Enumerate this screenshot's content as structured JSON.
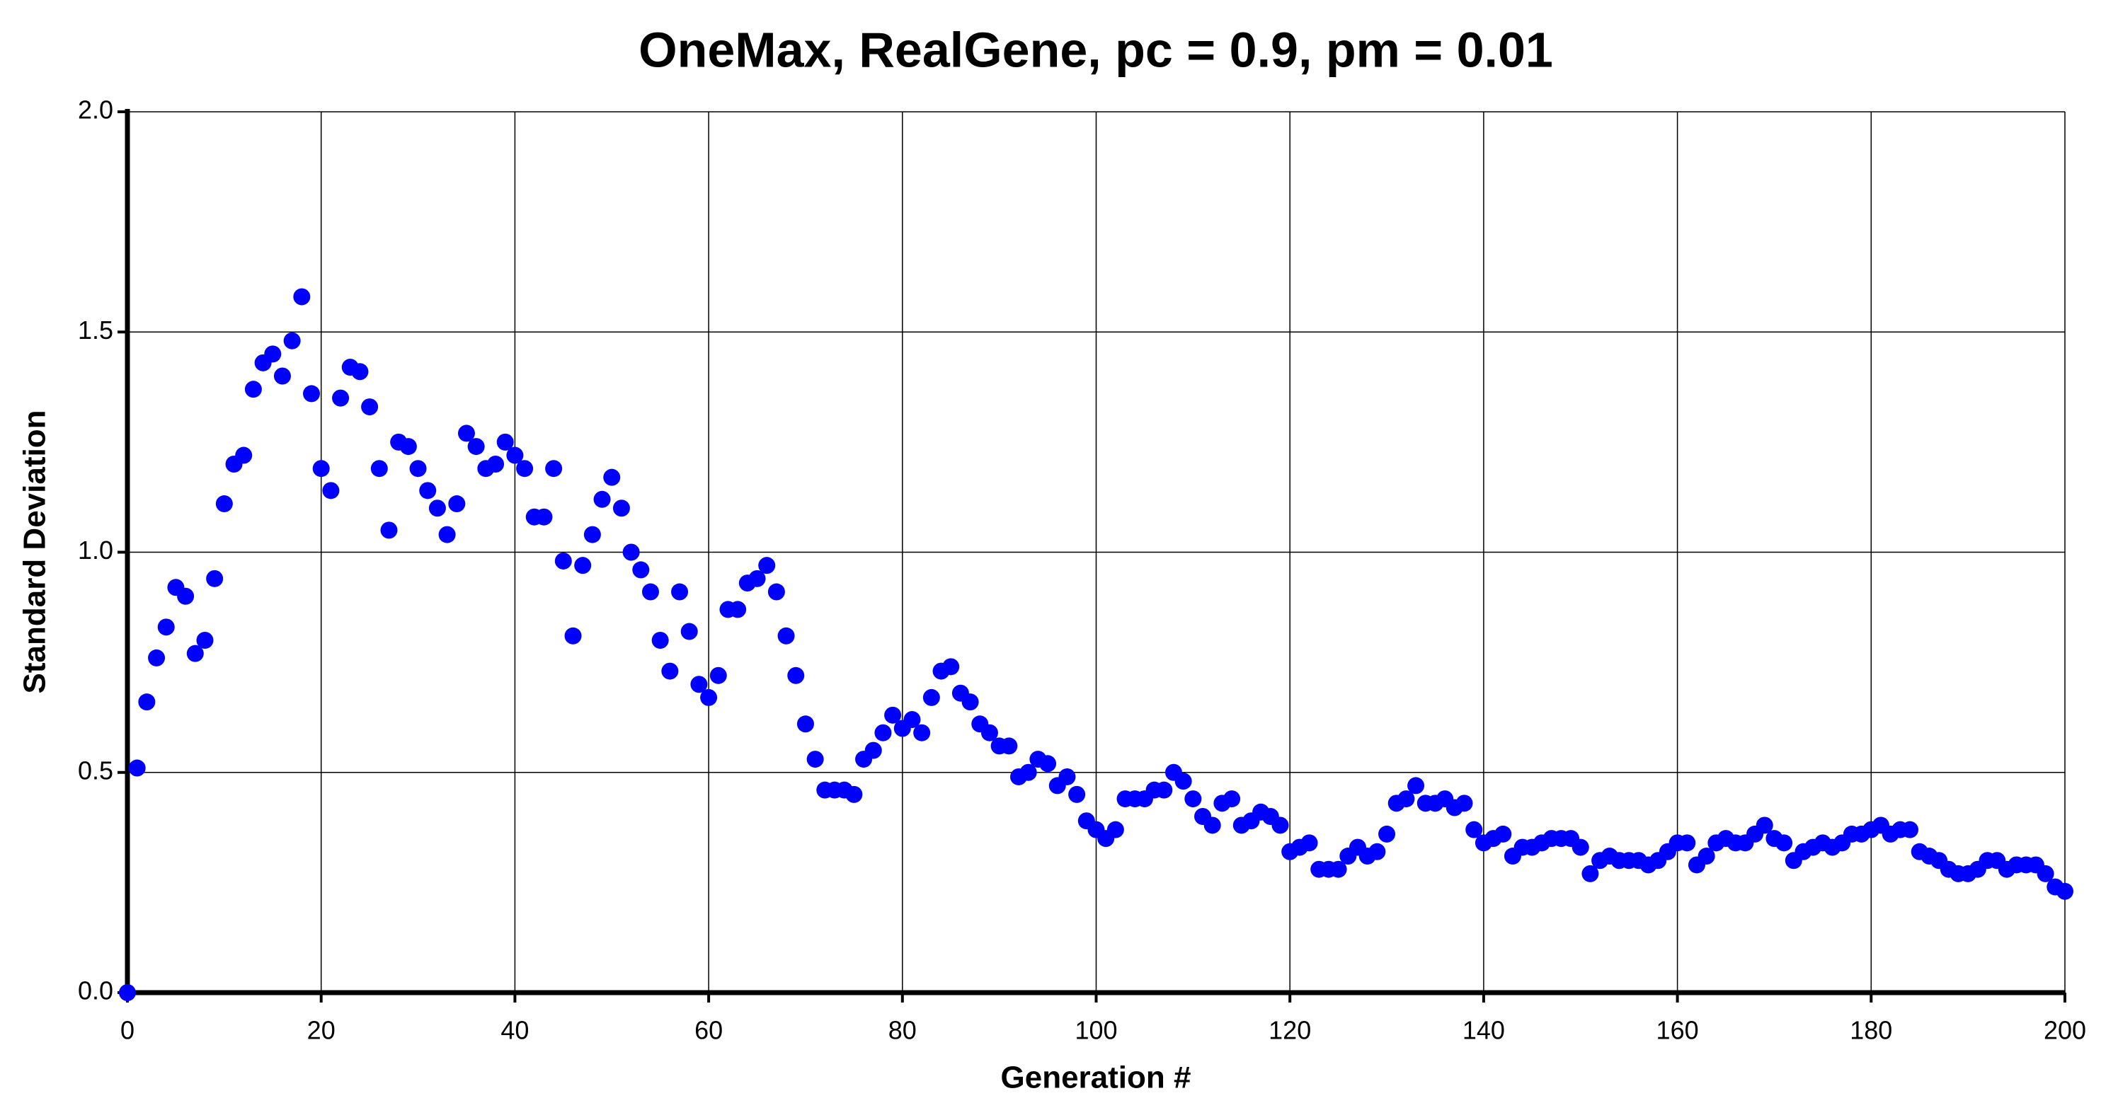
{
  "chart_data": {
    "type": "scatter",
    "title": "OneMax, RealGene, pc = 0.9, pm = 0.01",
    "x_label": "Generation #",
    "y_label": "Standard Deviation",
    "x": [
      0,
      1,
      2,
      3,
      4,
      5,
      6,
      7,
      8,
      9,
      10,
      11,
      12,
      13,
      14,
      15,
      16,
      17,
      18,
      19,
      20,
      21,
      22,
      23,
      24,
      25,
      26,
      27,
      28,
      29,
      30,
      31,
      32,
      33,
      34,
      35,
      36,
      37,
      38,
      39,
      40,
      41,
      42,
      43,
      44,
      45,
      46,
      47,
      48,
      49,
      50,
      51,
      52,
      53,
      54,
      55,
      56,
      57,
      58,
      59,
      60,
      61,
      62,
      63,
      64,
      65,
      66,
      67,
      68,
      69,
      70,
      71,
      72,
      73,
      74,
      75,
      76,
      77,
      78,
      79,
      80,
      81,
      82,
      83,
      84,
      85,
      86,
      87,
      88,
      89,
      90,
      91,
      92,
      93,
      94,
      95,
      96,
      97,
      98,
      99,
      100,
      101,
      102,
      103,
      104,
      105,
      106,
      107,
      108,
      109,
      110,
      111,
      112,
      113,
      114,
      115,
      116,
      117,
      118,
      119,
      120,
      121,
      122,
      123,
      124,
      125,
      126,
      127,
      128,
      129,
      130,
      131,
      132,
      133,
      134,
      135,
      136,
      137,
      138,
      139,
      140,
      141,
      142,
      143,
      144,
      145,
      146,
      147,
      148,
      149,
      150,
      151,
      152,
      153,
      154,
      155,
      156,
      157,
      158,
      159,
      160,
      161,
      162,
      163,
      164,
      165,
      166,
      167,
      168,
      169,
      170,
      171,
      172,
      173,
      174,
      175,
      176,
      177,
      178,
      179,
      180,
      181,
      182,
      183,
      184,
      185,
      186,
      187,
      188,
      189,
      190,
      191,
      192,
      193,
      194,
      195,
      196,
      197,
      198,
      199,
      200
    ],
    "values": [
      0.0,
      0.51,
      0.66,
      0.76,
      0.83,
      0.92,
      0.9,
      0.77,
      0.8,
      0.94,
      1.11,
      1.2,
      1.22,
      1.37,
      1.43,
      1.45,
      1.4,
      1.48,
      1.58,
      1.36,
      1.19,
      1.14,
      1.35,
      1.42,
      1.41,
      1.33,
      1.19,
      1.05,
      1.25,
      1.24,
      1.19,
      1.14,
      1.1,
      1.04,
      1.11,
      1.27,
      1.24,
      1.19,
      1.2,
      1.25,
      1.22,
      1.19,
      1.08,
      1.08,
      1.19,
      0.98,
      0.81,
      0.97,
      1.04,
      1.12,
      1.17,
      1.1,
      1.0,
      0.96,
      0.91,
      0.8,
      0.73,
      0.91,
      0.82,
      0.7,
      0.67,
      0.72,
      0.87,
      0.87,
      0.93,
      0.94,
      0.97,
      0.91,
      0.81,
      0.72,
      0.61,
      0.53,
      0.46,
      0.46,
      0.46,
      0.45,
      0.53,
      0.55,
      0.59,
      0.63,
      0.6,
      0.62,
      0.59,
      0.67,
      0.73,
      0.74,
      0.68,
      0.66,
      0.61,
      0.59,
      0.56,
      0.56,
      0.49,
      0.5,
      0.53,
      0.52,
      0.47,
      0.49,
      0.45,
      0.39,
      0.37,
      0.35,
      0.37,
      0.44,
      0.44,
      0.44,
      0.46,
      0.46,
      0.5,
      0.48,
      0.44,
      0.4,
      0.38,
      0.43,
      0.44,
      0.38,
      0.39,
      0.41,
      0.4,
      0.38,
      0.32,
      0.33,
      0.34,
      0.28,
      0.28,
      0.28,
      0.31,
      0.33,
      0.31,
      0.32,
      0.36,
      0.43,
      0.44,
      0.47,
      0.43,
      0.43,
      0.44,
      0.42,
      0.43,
      0.37,
      0.34,
      0.35,
      0.36,
      0.31,
      0.33,
      0.33,
      0.34,
      0.35,
      0.35,
      0.35,
      0.33,
      0.27,
      0.3,
      0.31,
      0.3,
      0.3,
      0.3,
      0.29,
      0.3,
      0.32,
      0.34,
      0.34,
      0.29,
      0.31,
      0.34,
      0.35,
      0.34,
      0.34,
      0.36,
      0.38,
      0.35,
      0.34,
      0.3,
      0.32,
      0.33,
      0.34,
      0.33,
      0.34,
      0.36,
      0.36,
      0.37,
      0.38,
      0.36,
      0.37,
      0.37,
      0.32,
      0.31,
      0.3,
      0.28,
      0.27,
      0.27,
      0.28,
      0.3,
      0.3,
      0.28,
      0.29,
      0.29,
      0.29,
      0.27,
      0.24,
      0.23
    ],
    "color": "#0000ff",
    "xlim": [
      0,
      200
    ],
    "xticks": [
      0,
      20,
      40,
      60,
      80,
      100,
      120,
      140,
      160,
      180,
      200
    ],
    "ylim": [
      0,
      2
    ],
    "yticks": [
      {
        "value": 0,
        "label": "0.0"
      },
      {
        "value": 0.5,
        "label": "0.5"
      },
      {
        "value": 1,
        "label": "1.0"
      },
      {
        "value": 1.5,
        "label": "1.5"
      },
      {
        "value": 2,
        "label": "2.0"
      }
    ],
    "grid": true
  }
}
